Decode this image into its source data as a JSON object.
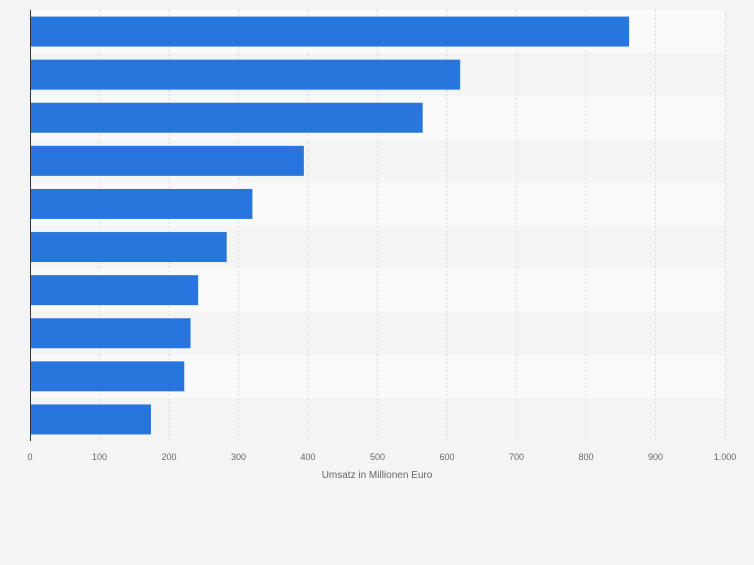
{
  "chart_data": {
    "type": "bar",
    "orientation": "horizontal",
    "categories": [
      "",
      "",
      "",
      "",
      "",
      "",
      "",
      "",
      "",
      ""
    ],
    "values": [
      862,
      619,
      565,
      394,
      320,
      283,
      242,
      231,
      222,
      174
    ],
    "xlabel": "Umsatz in Millionen Euro",
    "ylabel": "",
    "xlim": [
      0,
      1000
    ],
    "x_ticks": [
      0,
      100,
      200,
      300,
      400,
      500,
      600,
      700,
      800,
      900,
      1000
    ],
    "x_tick_labels": [
      "0",
      "100",
      "200",
      "300",
      "400",
      "500",
      "600",
      "700",
      "800",
      "900",
      "1.000"
    ],
    "grid": true,
    "colors": {
      "bar": "#2876dd",
      "band_light": "#fafafa",
      "band_dark": "#f4f4f4",
      "gridline": "#dddddd",
      "axis": "#333333",
      "tick_label": "#666666"
    }
  }
}
